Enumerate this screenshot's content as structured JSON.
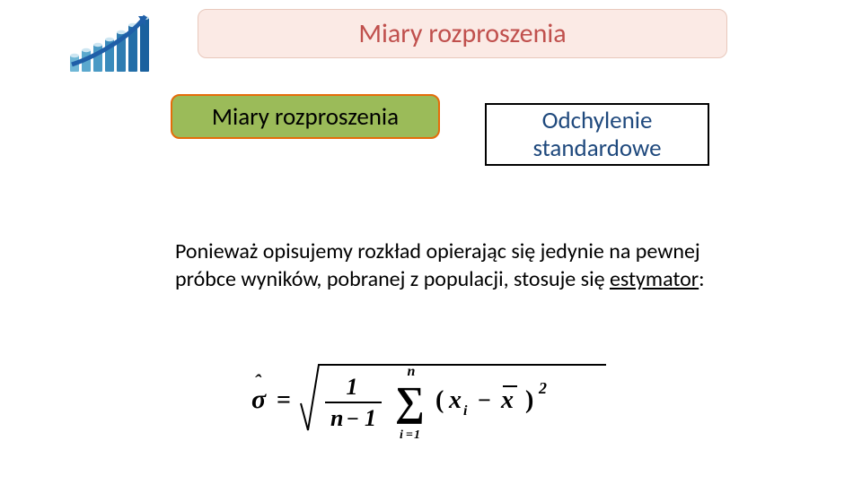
{
  "icon": {
    "bars": [
      {
        "h": 18,
        "color": "#6fb7d6"
      },
      {
        "h": 24,
        "color": "#5aa8ce"
      },
      {
        "h": 30,
        "color": "#4a9ac5"
      },
      {
        "h": 36,
        "color": "#3a8bbc"
      },
      {
        "h": 44,
        "color": "#2f7db2"
      },
      {
        "h": 52,
        "color": "#236ea8"
      },
      {
        "h": 60,
        "color": "#1a619e"
      }
    ],
    "arrow_color": "#1f5fa8"
  },
  "title": {
    "text": "Miary rozproszenia",
    "color": "#c0504d",
    "fontsize": 30,
    "background": "#fbeae5",
    "border": "#e8c8bc"
  },
  "green_box": {
    "text": "Miary rozproszenia",
    "color": "#000000",
    "fontsize": 27,
    "background": "#9bbb59",
    "border": "#e46c0a"
  },
  "black_box": {
    "line1": "Odchylenie",
    "line2": "standardowe",
    "color": "#1f497d",
    "fontsize": 27
  },
  "body": {
    "text_before": "Ponieważ opisujemy rozkład opierając się jedynie na pewnej próbce wyników, pobranej z populacji, stosuje się ",
    "text_underline": "estymator",
    "text_after": ":",
    "fontsize": 24
  },
  "formula": {
    "sigma_hat": "σ̂",
    "equals": " = ",
    "frac_num": "1",
    "frac_den_n": "n",
    "frac_den_minus": " − ",
    "frac_den_1": "1",
    "sum_top": "n",
    "sum_bottom_i": "i",
    "sum_bottom_eq": "=",
    "sum_bottom_1": "1",
    "open": "(",
    "xi_x": "x",
    "xi_i": "i",
    "minus": " − ",
    "xbar_x": "x",
    "close": ")",
    "sq": "2"
  }
}
